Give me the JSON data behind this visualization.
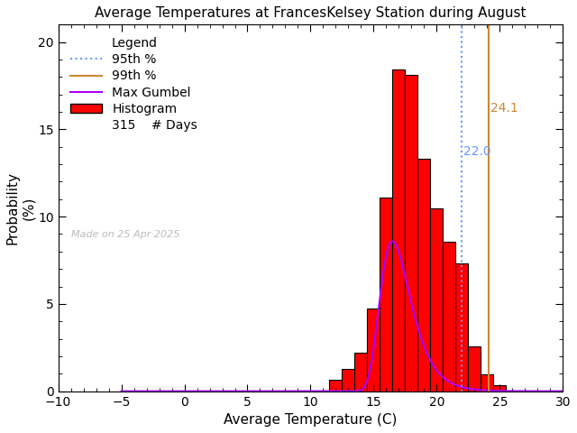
{
  "title": "Average Temperatures at FrancesKelsey Station during August",
  "xlabel": "Average Temperature (C)",
  "ylabel": "Probability\n(%)",
  "xlim": [
    -10,
    30
  ],
  "ylim": [
    0,
    21
  ],
  "yticks": [
    0,
    5,
    10,
    15,
    20
  ],
  "xticks": [
    -10,
    -5,
    0,
    5,
    10,
    15,
    20,
    25,
    30
  ],
  "hist_bin_edges": [
    11.5,
    12.5,
    13.5,
    14.5,
    15.5,
    16.5,
    17.5,
    18.5,
    19.5,
    20.5,
    21.5,
    22.5,
    23.5,
    24.5,
    25.5
  ],
  "hist_centers": [
    12,
    13,
    14,
    15,
    16,
    17,
    18,
    19,
    20,
    21,
    22,
    23,
    24,
    25
  ],
  "hist_values": [
    0.64,
    1.27,
    2.22,
    4.76,
    11.11,
    18.41,
    18.1,
    13.33,
    10.48,
    8.57,
    7.3,
    2.54,
    0.95,
    0.32
  ],
  "n_days": 315,
  "pct95_val": 22.0,
  "pct99_val": 24.1,
  "gumbel_mu": 16.5,
  "gumbel_beta": 1.2,
  "gumbel_scale": 28.0,
  "bar_color": "#ff0000",
  "bar_edgecolor": "#000000",
  "gumbel_color": "#aa00ff",
  "pct95_color": "#6699ff",
  "pct99_color": "#cc8833",
  "legend_title": "Legend",
  "made_on_text": "Made on 25 Apr 2025",
  "bg_color": "#ffffff",
  "title_fontsize": 11,
  "axis_fontsize": 11,
  "tick_fontsize": 10,
  "legend_fontsize": 10
}
